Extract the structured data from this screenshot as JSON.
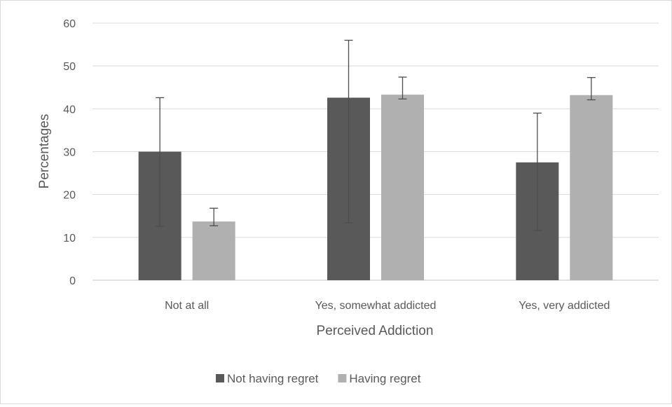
{
  "chart_data": {
    "type": "bar",
    "title": "",
    "xlabel": "Perceived Addiction",
    "ylabel": "Percentages",
    "categories": [
      "Not at all",
      "Yes, somewhat addicted",
      "Yes, very addicted"
    ],
    "ylim": [
      0,
      60
    ],
    "yticks": [
      0,
      10,
      20,
      30,
      40,
      50,
      60
    ],
    "grid": true,
    "legend_position": "bottom",
    "series": [
      {
        "name": "Not having regret",
        "color": "#595959",
        "values": [
          30,
          42.6,
          27.5
        ],
        "error_low": [
          12.6,
          13.4,
          11.6
        ],
        "error_high": [
          42.6,
          56.0,
          39.0
        ]
      },
      {
        "name": "Having regret",
        "color": "#b0b0b0",
        "values": [
          13.7,
          43.3,
          43.2
        ],
        "error_low": [
          12.7,
          42.3,
          42.1
        ],
        "error_high": [
          16.8,
          47.4,
          47.3
        ]
      }
    ]
  }
}
